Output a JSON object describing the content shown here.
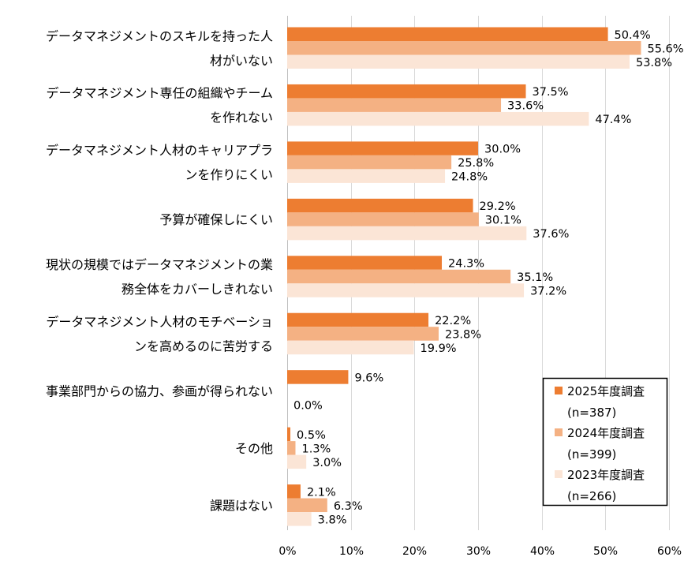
{
  "chart_data": {
    "type": "bar",
    "orientation": "horizontal",
    "title": "",
    "xlabel": "",
    "ylabel": "",
    "xlim": [
      0,
      60
    ],
    "x_ticks": [
      "0%",
      "10%",
      "20%",
      "30%",
      "40%",
      "50%",
      "60%"
    ],
    "grid": true,
    "legend_position": "bottom-right",
    "categories": [
      [
        "データマネジメントのスキルを持った人",
        "材がいない"
      ],
      [
        "データマネジメント専任の組織やチーム",
        "を作れない"
      ],
      [
        "データマネジメント人材のキャリアプラ",
        "ンを作りにくい"
      ],
      [
        "予算が確保しにくい"
      ],
      [
        "現状の規模ではデータマネジメントの業",
        "務全体をカバーしきれない"
      ],
      [
        "データマネジメント人材のモチベーショ",
        "ンを高めるのに苦労する"
      ],
      [
        "事業部門からの協力、参画が得られない"
      ],
      [
        "その他"
      ],
      [
        "課題はない"
      ]
    ],
    "series": [
      {
        "name": "2025年度調査",
        "n": "(n=387)",
        "color": "#ED7D31",
        "values": [
          50.4,
          37.5,
          30.0,
          29.2,
          24.3,
          22.2,
          9.6,
          0.5,
          2.1
        ],
        "labels": [
          "50.4%",
          "37.5%",
          "30.0%",
          "29.2%",
          "24.3%",
          "22.2%",
          "9.6%",
          "0.5%",
          "2.1%"
        ]
      },
      {
        "name": "2024年度調査",
        "n": "(n=399)",
        "color": "#F4B183",
        "values": [
          55.6,
          33.6,
          25.8,
          30.1,
          35.1,
          23.8,
          null,
          1.3,
          6.3
        ],
        "labels": [
          "55.6%",
          "33.6%",
          "25.8%",
          "30.1%",
          "35.1%",
          "23.8%",
          "",
          "1.3%",
          "6.3%"
        ]
      },
      {
        "name": "2023年度調査",
        "n": "(n=266)",
        "color": "#FBE5D6",
        "values": [
          53.8,
          47.4,
          24.8,
          37.6,
          37.2,
          19.9,
          0.0,
          3.0,
          3.8
        ],
        "labels": [
          "53.8%",
          "47.4%",
          "24.8%",
          "37.6%",
          "37.2%",
          "19.9%",
          "0.0%",
          "3.0%",
          "3.8%"
        ]
      }
    ]
  }
}
